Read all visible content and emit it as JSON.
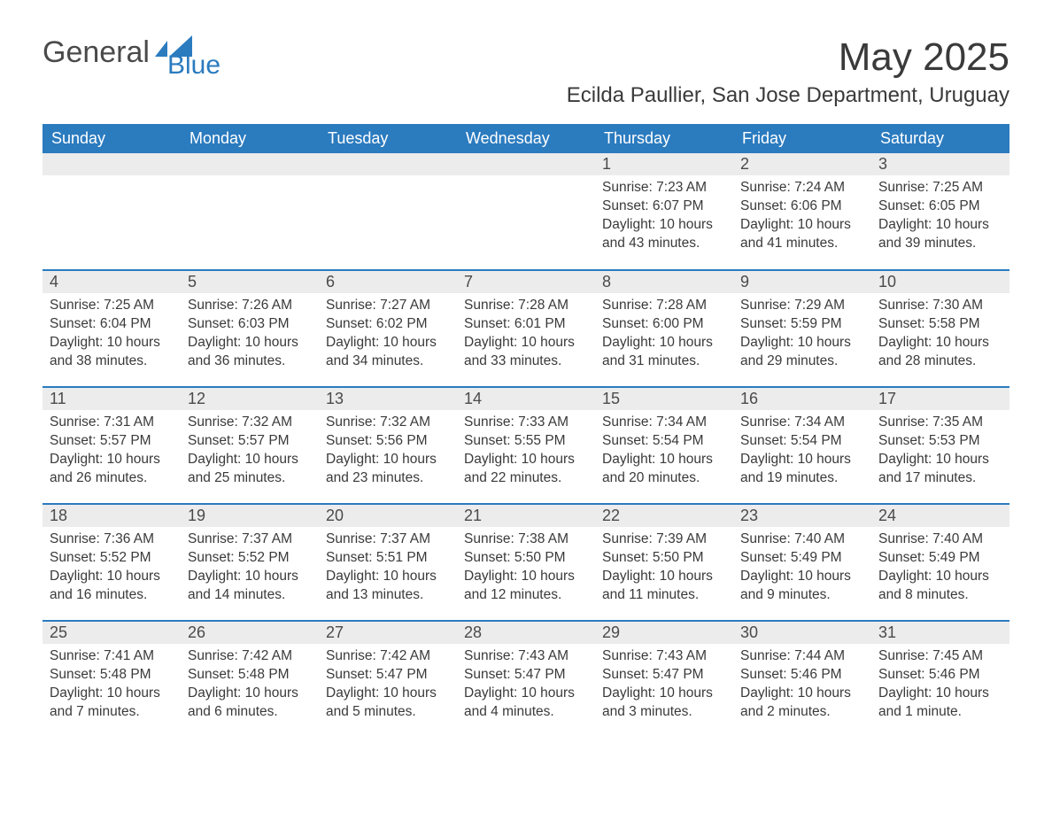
{
  "logo": {
    "text1": "General",
    "text2": "Blue"
  },
  "title": "May 2025",
  "subtitle": "Ecilda Paullier, San Jose Department, Uruguay",
  "colors": {
    "header_bg": "#2b7bbf",
    "header_text": "#ffffff",
    "daynum_bg": "#ececec",
    "row_border": "#2b7bbf",
    "body_text": "#3a3a3a",
    "background": "#ffffff"
  },
  "fonts": {
    "title_size": 44,
    "subtitle_size": 24,
    "dayheader_size": 18,
    "daynum_size": 18,
    "daytext_size": 15.5
  },
  "day_headers": [
    "Sunday",
    "Monday",
    "Tuesday",
    "Wednesday",
    "Thursday",
    "Friday",
    "Saturday"
  ],
  "weeks": [
    [
      null,
      null,
      null,
      null,
      {
        "num": "1",
        "sunrise": "7:23 AM",
        "sunset": "6:07 PM",
        "daylight": "10 hours and 43 minutes."
      },
      {
        "num": "2",
        "sunrise": "7:24 AM",
        "sunset": "6:06 PM",
        "daylight": "10 hours and 41 minutes."
      },
      {
        "num": "3",
        "sunrise": "7:25 AM",
        "sunset": "6:05 PM",
        "daylight": "10 hours and 39 minutes."
      }
    ],
    [
      {
        "num": "4",
        "sunrise": "7:25 AM",
        "sunset": "6:04 PM",
        "daylight": "10 hours and 38 minutes."
      },
      {
        "num": "5",
        "sunrise": "7:26 AM",
        "sunset": "6:03 PM",
        "daylight": "10 hours and 36 minutes."
      },
      {
        "num": "6",
        "sunrise": "7:27 AM",
        "sunset": "6:02 PM",
        "daylight": "10 hours and 34 minutes."
      },
      {
        "num": "7",
        "sunrise": "7:28 AM",
        "sunset": "6:01 PM",
        "daylight": "10 hours and 33 minutes."
      },
      {
        "num": "8",
        "sunrise": "7:28 AM",
        "sunset": "6:00 PM",
        "daylight": "10 hours and 31 minutes."
      },
      {
        "num": "9",
        "sunrise": "7:29 AM",
        "sunset": "5:59 PM",
        "daylight": "10 hours and 29 minutes."
      },
      {
        "num": "10",
        "sunrise": "7:30 AM",
        "sunset": "5:58 PM",
        "daylight": "10 hours and 28 minutes."
      }
    ],
    [
      {
        "num": "11",
        "sunrise": "7:31 AM",
        "sunset": "5:57 PM",
        "daylight": "10 hours and 26 minutes."
      },
      {
        "num": "12",
        "sunrise": "7:32 AM",
        "sunset": "5:57 PM",
        "daylight": "10 hours and 25 minutes."
      },
      {
        "num": "13",
        "sunrise": "7:32 AM",
        "sunset": "5:56 PM",
        "daylight": "10 hours and 23 minutes."
      },
      {
        "num": "14",
        "sunrise": "7:33 AM",
        "sunset": "5:55 PM",
        "daylight": "10 hours and 22 minutes."
      },
      {
        "num": "15",
        "sunrise": "7:34 AM",
        "sunset": "5:54 PM",
        "daylight": "10 hours and 20 minutes."
      },
      {
        "num": "16",
        "sunrise": "7:34 AM",
        "sunset": "5:54 PM",
        "daylight": "10 hours and 19 minutes."
      },
      {
        "num": "17",
        "sunrise": "7:35 AM",
        "sunset": "5:53 PM",
        "daylight": "10 hours and 17 minutes."
      }
    ],
    [
      {
        "num": "18",
        "sunrise": "7:36 AM",
        "sunset": "5:52 PM",
        "daylight": "10 hours and 16 minutes."
      },
      {
        "num": "19",
        "sunrise": "7:37 AM",
        "sunset": "5:52 PM",
        "daylight": "10 hours and 14 minutes."
      },
      {
        "num": "20",
        "sunrise": "7:37 AM",
        "sunset": "5:51 PM",
        "daylight": "10 hours and 13 minutes."
      },
      {
        "num": "21",
        "sunrise": "7:38 AM",
        "sunset": "5:50 PM",
        "daylight": "10 hours and 12 minutes."
      },
      {
        "num": "22",
        "sunrise": "7:39 AM",
        "sunset": "5:50 PM",
        "daylight": "10 hours and 11 minutes."
      },
      {
        "num": "23",
        "sunrise": "7:40 AM",
        "sunset": "5:49 PM",
        "daylight": "10 hours and 9 minutes."
      },
      {
        "num": "24",
        "sunrise": "7:40 AM",
        "sunset": "5:49 PM",
        "daylight": "10 hours and 8 minutes."
      }
    ],
    [
      {
        "num": "25",
        "sunrise": "7:41 AM",
        "sunset": "5:48 PM",
        "daylight": "10 hours and 7 minutes."
      },
      {
        "num": "26",
        "sunrise": "7:42 AM",
        "sunset": "5:48 PM",
        "daylight": "10 hours and 6 minutes."
      },
      {
        "num": "27",
        "sunrise": "7:42 AM",
        "sunset": "5:47 PM",
        "daylight": "10 hours and 5 minutes."
      },
      {
        "num": "28",
        "sunrise": "7:43 AM",
        "sunset": "5:47 PM",
        "daylight": "10 hours and 4 minutes."
      },
      {
        "num": "29",
        "sunrise": "7:43 AM",
        "sunset": "5:47 PM",
        "daylight": "10 hours and 3 minutes."
      },
      {
        "num": "30",
        "sunrise": "7:44 AM",
        "sunset": "5:46 PM",
        "daylight": "10 hours and 2 minutes."
      },
      {
        "num": "31",
        "sunrise": "7:45 AM",
        "sunset": "5:46 PM",
        "daylight": "10 hours and 1 minute."
      }
    ]
  ],
  "labels": {
    "sunrise": "Sunrise:",
    "sunset": "Sunset:",
    "daylight": "Daylight:"
  }
}
